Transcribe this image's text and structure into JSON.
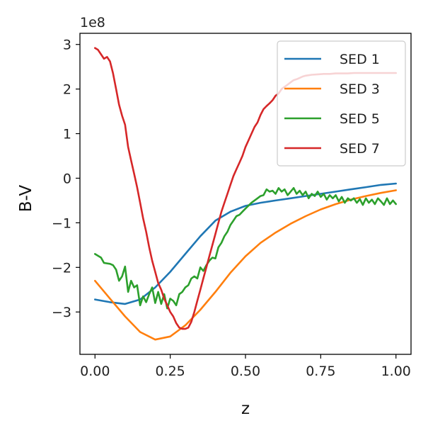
{
  "chart_data": {
    "type": "line",
    "title": "",
    "xlabel": "z",
    "ylabel": "B-V",
    "y_offset_text": "1e8",
    "xlim": [
      -0.05,
      1.05
    ],
    "ylim": [
      -3.95,
      3.25
    ],
    "x_ticks": [
      0.0,
      0.25,
      0.5,
      0.75,
      1.0
    ],
    "x_tick_labels": [
      "0.00",
      "0.25",
      "0.50",
      "0.75",
      "1.00"
    ],
    "y_ticks": [
      -3,
      -2,
      -1,
      0,
      1,
      2,
      3
    ],
    "y_tick_labels": [
      "−3",
      "−2",
      "−1",
      "0",
      "1",
      "2",
      "3"
    ],
    "grid": false,
    "legend_position": "top-right",
    "series": [
      {
        "name": "SED 1",
        "color": "#1f77b4",
        "points": [
          [
            0.0,
            -2.72
          ],
          [
            0.05,
            -2.78
          ],
          [
            0.1,
            -2.82
          ],
          [
            0.15,
            -2.72
          ],
          [
            0.2,
            -2.45
          ],
          [
            0.25,
            -2.1
          ],
          [
            0.3,
            -1.7
          ],
          [
            0.35,
            -1.3
          ],
          [
            0.4,
            -0.95
          ],
          [
            0.45,
            -0.75
          ],
          [
            0.5,
            -0.62
          ],
          [
            0.55,
            -0.55
          ],
          [
            0.6,
            -0.5
          ],
          [
            0.65,
            -0.45
          ],
          [
            0.7,
            -0.4
          ],
          [
            0.75,
            -0.35
          ],
          [
            0.8,
            -0.3
          ],
          [
            0.85,
            -0.25
          ],
          [
            0.9,
            -0.2
          ],
          [
            0.95,
            -0.15
          ],
          [
            1.0,
            -0.12
          ]
        ]
      },
      {
        "name": "SED 3",
        "color": "#ff7f0e",
        "points": [
          [
            0.0,
            -2.3
          ],
          [
            0.05,
            -2.7
          ],
          [
            0.1,
            -3.1
          ],
          [
            0.15,
            -3.45
          ],
          [
            0.2,
            -3.62
          ],
          [
            0.25,
            -3.55
          ],
          [
            0.3,
            -3.3
          ],
          [
            0.35,
            -2.95
          ],
          [
            0.4,
            -2.55
          ],
          [
            0.45,
            -2.12
          ],
          [
            0.5,
            -1.75
          ],
          [
            0.55,
            -1.45
          ],
          [
            0.6,
            -1.22
          ],
          [
            0.65,
            -1.02
          ],
          [
            0.7,
            -0.85
          ],
          [
            0.75,
            -0.7
          ],
          [
            0.8,
            -0.58
          ],
          [
            0.85,
            -0.48
          ],
          [
            0.9,
            -0.4
          ],
          [
            0.95,
            -0.33
          ],
          [
            1.0,
            -0.27
          ]
        ]
      },
      {
        "name": "SED 5",
        "color": "#2ca02c",
        "points": [
          [
            0.0,
            -1.7
          ],
          [
            0.02,
            -1.78
          ],
          [
            0.03,
            -1.9
          ],
          [
            0.05,
            -1.92
          ],
          [
            0.06,
            -1.95
          ],
          [
            0.07,
            -2.05
          ],
          [
            0.08,
            -2.3
          ],
          [
            0.09,
            -2.2
          ],
          [
            0.1,
            -1.98
          ],
          [
            0.11,
            -2.55
          ],
          [
            0.12,
            -2.3
          ],
          [
            0.13,
            -2.45
          ],
          [
            0.14,
            -2.4
          ],
          [
            0.15,
            -2.85
          ],
          [
            0.16,
            -2.65
          ],
          [
            0.17,
            -2.78
          ],
          [
            0.18,
            -2.6
          ],
          [
            0.19,
            -2.45
          ],
          [
            0.2,
            -2.8
          ],
          [
            0.21,
            -2.55
          ],
          [
            0.22,
            -2.82
          ],
          [
            0.23,
            -2.6
          ],
          [
            0.24,
            -2.92
          ],
          [
            0.25,
            -2.7
          ],
          [
            0.26,
            -2.75
          ],
          [
            0.27,
            -2.85
          ],
          [
            0.28,
            -2.6
          ],
          [
            0.29,
            -2.55
          ],
          [
            0.3,
            -2.45
          ],
          [
            0.31,
            -2.4
          ],
          [
            0.32,
            -2.25
          ],
          [
            0.33,
            -2.2
          ],
          [
            0.34,
            -2.25
          ],
          [
            0.35,
            -2.0
          ],
          [
            0.36,
            -2.08
          ],
          [
            0.37,
            -1.95
          ],
          [
            0.38,
            -1.85
          ],
          [
            0.39,
            -1.78
          ],
          [
            0.4,
            -1.8
          ],
          [
            0.41,
            -1.55
          ],
          [
            0.42,
            -1.45
          ],
          [
            0.43,
            -1.3
          ],
          [
            0.44,
            -1.2
          ],
          [
            0.45,
            -1.05
          ],
          [
            0.46,
            -0.95
          ],
          [
            0.47,
            -0.85
          ],
          [
            0.48,
            -0.82
          ],
          [
            0.49,
            -0.75
          ],
          [
            0.5,
            -0.68
          ],
          [
            0.52,
            -0.55
          ],
          [
            0.54,
            -0.45
          ],
          [
            0.55,
            -0.4
          ],
          [
            0.56,
            -0.38
          ],
          [
            0.57,
            -0.25
          ],
          [
            0.58,
            -0.3
          ],
          [
            0.59,
            -0.28
          ],
          [
            0.6,
            -0.35
          ],
          [
            0.61,
            -0.22
          ],
          [
            0.62,
            -0.3
          ],
          [
            0.63,
            -0.25
          ],
          [
            0.64,
            -0.38
          ],
          [
            0.65,
            -0.3
          ],
          [
            0.66,
            -0.22
          ],
          [
            0.67,
            -0.35
          ],
          [
            0.68,
            -0.28
          ],
          [
            0.69,
            -0.38
          ],
          [
            0.7,
            -0.3
          ],
          [
            0.71,
            -0.45
          ],
          [
            0.72,
            -0.35
          ],
          [
            0.73,
            -0.4
          ],
          [
            0.74,
            -0.3
          ],
          [
            0.75,
            -0.42
          ],
          [
            0.76,
            -0.35
          ],
          [
            0.77,
            -0.48
          ],
          [
            0.78,
            -0.38
          ],
          [
            0.79,
            -0.45
          ],
          [
            0.8,
            -0.38
          ],
          [
            0.81,
            -0.52
          ],
          [
            0.82,
            -0.42
          ],
          [
            0.83,
            -0.55
          ],
          [
            0.84,
            -0.45
          ],
          [
            0.85,
            -0.5
          ],
          [
            0.86,
            -0.45
          ],
          [
            0.87,
            -0.55
          ],
          [
            0.88,
            -0.47
          ],
          [
            0.89,
            -0.6
          ],
          [
            0.9,
            -0.45
          ],
          [
            0.91,
            -0.55
          ],
          [
            0.92,
            -0.48
          ],
          [
            0.93,
            -0.58
          ],
          [
            0.94,
            -0.45
          ],
          [
            0.95,
            -0.52
          ],
          [
            0.96,
            -0.6
          ],
          [
            0.97,
            -0.45
          ],
          [
            0.98,
            -0.58
          ],
          [
            0.99,
            -0.5
          ],
          [
            1.0,
            -0.58
          ]
        ]
      },
      {
        "name": "SED 7",
        "color": "#d62728",
        "points": [
          [
            0.0,
            2.92
          ],
          [
            0.01,
            2.88
          ],
          [
            0.02,
            2.78
          ],
          [
            0.03,
            2.68
          ],
          [
            0.04,
            2.72
          ],
          [
            0.05,
            2.62
          ],
          [
            0.06,
            2.35
          ],
          [
            0.07,
            2.0
          ],
          [
            0.08,
            1.65
          ],
          [
            0.09,
            1.4
          ],
          [
            0.1,
            1.2
          ],
          [
            0.11,
            0.7
          ],
          [
            0.12,
            0.4
          ],
          [
            0.13,
            0.1
          ],
          [
            0.14,
            -0.2
          ],
          [
            0.15,
            -0.55
          ],
          [
            0.16,
            -0.9
          ],
          [
            0.17,
            -1.2
          ],
          [
            0.18,
            -1.55
          ],
          [
            0.19,
            -1.85
          ],
          [
            0.2,
            -2.1
          ],
          [
            0.21,
            -2.35
          ],
          [
            0.22,
            -2.5
          ],
          [
            0.23,
            -2.7
          ],
          [
            0.24,
            -2.85
          ],
          [
            0.25,
            -3.0
          ],
          [
            0.26,
            -3.1
          ],
          [
            0.27,
            -3.25
          ],
          [
            0.28,
            -3.35
          ],
          [
            0.29,
            -3.38
          ],
          [
            0.3,
            -3.38
          ],
          [
            0.31,
            -3.35
          ],
          [
            0.32,
            -3.22
          ],
          [
            0.33,
            -3.0
          ],
          [
            0.34,
            -2.75
          ],
          [
            0.35,
            -2.5
          ],
          [
            0.36,
            -2.25
          ],
          [
            0.37,
            -2.0
          ],
          [
            0.38,
            -1.75
          ],
          [
            0.39,
            -1.5
          ],
          [
            0.4,
            -1.25
          ],
          [
            0.41,
            -1.0
          ],
          [
            0.42,
            -0.75
          ],
          [
            0.43,
            -0.55
          ],
          [
            0.44,
            -0.35
          ],
          [
            0.45,
            -0.15
          ],
          [
            0.46,
            0.05
          ],
          [
            0.47,
            0.2
          ],
          [
            0.48,
            0.35
          ],
          [
            0.49,
            0.5
          ],
          [
            0.5,
            0.7
          ],
          [
            0.51,
            0.85
          ],
          [
            0.52,
            1.0
          ],
          [
            0.53,
            1.15
          ],
          [
            0.54,
            1.25
          ],
          [
            0.55,
            1.42
          ],
          [
            0.56,
            1.55
          ],
          [
            0.57,
            1.62
          ],
          [
            0.58,
            1.68
          ],
          [
            0.59,
            1.75
          ],
          [
            0.6,
            1.85
          ],
          [
            0.61,
            1.9
          ],
          [
            0.62,
            2.0
          ],
          [
            0.63,
            2.05
          ],
          [
            0.64,
            2.1
          ],
          [
            0.65,
            2.15
          ],
          [
            0.66,
            2.2
          ],
          [
            0.67,
            2.22
          ],
          [
            0.68,
            2.25
          ],
          [
            0.69,
            2.28
          ],
          [
            0.7,
            2.3
          ],
          [
            0.72,
            2.32
          ],
          [
            0.74,
            2.33
          ],
          [
            0.76,
            2.34
          ],
          [
            0.78,
            2.34
          ],
          [
            0.8,
            2.35
          ],
          [
            0.82,
            2.35
          ],
          [
            0.84,
            2.35
          ],
          [
            0.86,
            2.36
          ],
          [
            0.88,
            2.36
          ],
          [
            0.9,
            2.36
          ],
          [
            0.92,
            2.36
          ],
          [
            0.94,
            2.36
          ],
          [
            0.96,
            2.36
          ],
          [
            0.98,
            2.36
          ],
          [
            1.0,
            2.36
          ]
        ]
      }
    ]
  }
}
